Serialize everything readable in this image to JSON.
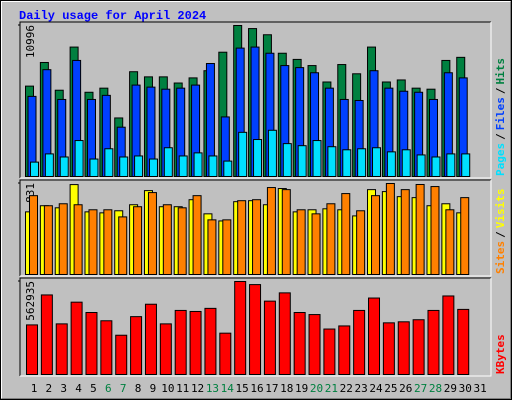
{
  "title": "Daily usage for April 2024",
  "legend_separator": "/",
  "chart_data": [
    {
      "type": "bar",
      "ylim": [
        0,
        10996
      ],
      "yticks": [
        10996
      ],
      "series": [
        {
          "name": "Hits",
          "color": "#008040",
          "values": [
            6582,
            8303,
            6283,
            9425,
            6134,
            6433,
            4264,
            7630,
            7256,
            7256,
            6807,
            7181,
            7704,
            9051,
            10996,
            10772,
            10322,
            8976,
            8527,
            8078,
            6882,
            8153,
            7480,
            9425,
            6882,
            7031,
            6433,
            6358,
            8452,
            8677,
            null
          ]
        },
        {
          "name": "Files",
          "color": "#0040ff",
          "values": [
            5834,
            7779,
            5610,
            8452,
            5610,
            5909,
            3590,
            6657,
            6508,
            6358,
            6433,
            6657,
            8228,
            4338,
            9350,
            9425,
            8976,
            8078,
            7929,
            7555,
            6433,
            5610,
            5535,
            7704,
            6433,
            6208,
            6134,
            5610,
            7555,
            7181,
            null
          ]
        },
        {
          "name": "Pages",
          "color": "#00e0ff",
          "values": [
            1047,
            1646,
            1421,
            2618,
            1272,
            2020,
            1421,
            1496,
            1272,
            2094,
            1496,
            1720,
            1496,
            1122,
            3216,
            2693,
            3366,
            2394,
            2244,
            2618,
            2169,
            1945,
            2020,
            2094,
            1795,
            1945,
            1571,
            1421,
            1646,
            1646,
            null
          ]
        }
      ]
    },
    {
      "type": "bar",
      "ylim": [
        0,
        831
      ],
      "yticks": [
        831
      ],
      "series": [
        {
          "name": "Visits",
          "color": "#ffff00",
          "values": [
            572,
            628,
            609,
            821,
            572,
            563,
            582,
            637,
            766,
            619,
            619,
            683,
            554,
            489,
            665,
            674,
            637,
            785,
            572,
            591,
            600,
            591,
            535,
            775,
            757,
            711,
            702,
            628,
            646,
            563,
            null
          ]
        },
        {
          "name": "Sites",
          "color": "#ff8000",
          "values": [
            720,
            628,
            646,
            637,
            591,
            591,
            526,
            619,
            748,
            637,
            609,
            720,
            499,
            499,
            674,
            683,
            794,
            775,
            591,
            554,
            646,
            739,
            582,
            720,
            831,
            775,
            822,
            803,
            591,
            702,
            null
          ]
        }
      ]
    },
    {
      "type": "bar",
      "ylim": [
        0,
        562935
      ],
      "yticks": [
        562935
      ],
      "categories": [
        "1",
        "2",
        "3",
        "4",
        "5",
        "6",
        "7",
        "8",
        "9",
        "10",
        "11",
        "12",
        "13",
        "14",
        "15",
        "16",
        "17",
        "18",
        "19",
        "20",
        "21",
        "22",
        "23",
        "24",
        "25",
        "26",
        "27",
        "28",
        "29",
        "30",
        "31"
      ],
      "category_colors": [
        "#000000",
        "#000000",
        "#000000",
        "#000000",
        "#000000",
        "#008040",
        "#008040",
        "#000000",
        "#000000",
        "#000000",
        "#000000",
        "#000000",
        "#008040",
        "#008040",
        "#000000",
        "#000000",
        "#000000",
        "#000000",
        "#000000",
        "#008040",
        "#008040",
        "#000000",
        "#000000",
        "#000000",
        "#000000",
        "#000000",
        "#008040",
        "#008040",
        "#000000",
        "#000000",
        "#000000"
      ],
      "series": [
        {
          "name": "KBytes",
          "color": "#ff0000",
          "values": [
            300240,
            481635,
            306495,
            437850,
            375300,
            325260,
            237690,
            350280,
            425340,
            306495,
            387810,
            381555,
            400320,
            250200,
            562935,
            544185,
            444105,
            494145,
            375300,
            362790,
            275220,
            293985,
            387810,
            462870,
            312750,
            319005,
            331515,
            387810,
            475380,
            394065,
            null
          ]
        }
      ]
    }
  ]
}
